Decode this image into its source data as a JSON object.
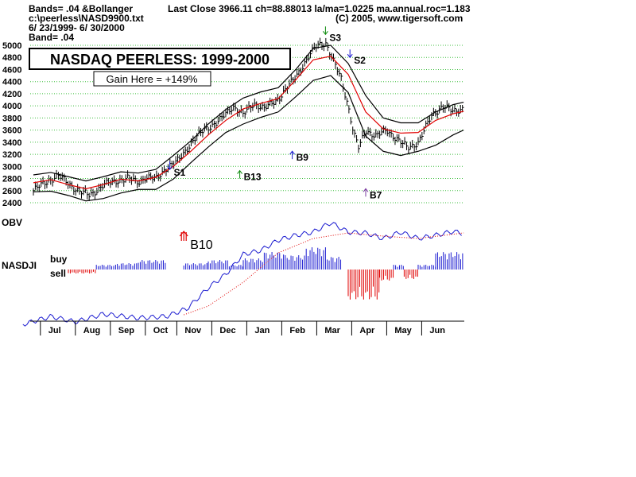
{
  "header": {
    "line1": "Bands= .04  &Bollanger",
    "line2": "c:\\peerless\\NASD9900.txt",
    "line3": " 6/ 23/1999- 6/ 30/2000",
    "line4": "Band= .04",
    "stats": "Last Close 3966.11 ch=88.88013  la/ma=1.0225 ma.annual.roc=1.183",
    "copyright": "(C) 2005, www.tigersoft.com"
  },
  "title_box": "NASDAQ PEERLESS: 1999-2000",
  "gain_box": "Gain Here = +149%",
  "labels": {
    "obv": "OBV",
    "nasdji": "NASDJI",
    "buy": "buy",
    "sell": "sell"
  },
  "colors": {
    "grid": "#3fbf3f",
    "price": "#000000",
    "upper_band": "#000000",
    "lower_band": "#000000",
    "ma": "#e00000",
    "obv": "#1a1ad0",
    "obv_ma": "#e00000",
    "buy_bars": "#1a1ad0",
    "sell_bars": "#e00000",
    "sig_blue": "#1a1ad0",
    "sig_green": "#0a8a0a",
    "sig_red": "#e00000",
    "sig_purple": "#7a3aa0"
  },
  "chart_data": {
    "type": "line",
    "title": "NASDAQ PEERLESS: 1999-2000",
    "ylim": [
      2400,
      5000
    ],
    "yticks": [
      2400,
      2600,
      2800,
      3000,
      3200,
      3400,
      3600,
      3800,
      4000,
      4200,
      4400,
      4600,
      4800,
      5000
    ],
    "months": [
      "Jul",
      "Aug",
      "Sep",
      "Oct",
      "Nov",
      "Dec",
      "Jan",
      "Feb",
      "Mar",
      "Apr",
      "May",
      "Jun"
    ],
    "x_range": [
      0,
      12.3
    ],
    "series": [
      {
        "name": "Close",
        "x": [
          0,
          0.3,
          0.7,
          1.0,
          1.3,
          1.6,
          2.0,
          2.4,
          2.7,
          3.0,
          3.2,
          3.5,
          3.8,
          4.1,
          4.5,
          4.9,
          5.3,
          5.7,
          6.0,
          6.3,
          6.6,
          7.0,
          7.4,
          7.8,
          8.1,
          8.35,
          8.6,
          8.8,
          9.0,
          9.15,
          9.3,
          9.5,
          9.8,
          10.1,
          10.4,
          10.7,
          11.0,
          11.4,
          11.7,
          12.0,
          12.3
        ],
        "y": [
          2600,
          2720,
          2850,
          2720,
          2590,
          2520,
          2690,
          2770,
          2800,
          2740,
          2820,
          2790,
          2980,
          3070,
          3380,
          3620,
          3740,
          4000,
          3850,
          4050,
          3950,
          4120,
          4400,
          4750,
          5000,
          5050,
          4700,
          4450,
          4000,
          3560,
          3300,
          3600,
          3500,
          3600,
          3450,
          3300,
          3400,
          3850,
          4000,
          3900,
          3970
        ]
      },
      {
        "name": "Upper band",
        "x": [
          0,
          0.5,
          1.0,
          1.5,
          2.0,
          2.5,
          3.0,
          3.5,
          4.0,
          4.5,
          5.0,
          5.5,
          6.0,
          6.5,
          7.0,
          7.5,
          8.0,
          8.5,
          9.0,
          9.5,
          10.0,
          10.5,
          11.0,
          11.5,
          12.0,
          12.3
        ],
        "y": [
          2860,
          2900,
          2830,
          2760,
          2830,
          2910,
          2890,
          2950,
          3180,
          3420,
          3700,
          3940,
          4130,
          4230,
          4300,
          4600,
          4950,
          5000,
          4700,
          4170,
          3800,
          3720,
          3720,
          3900,
          4020,
          4060
        ]
      },
      {
        "name": "MA",
        "x": [
          0,
          0.5,
          1.0,
          1.5,
          2.0,
          2.5,
          3.0,
          3.5,
          4.0,
          4.5,
          5.0,
          5.5,
          6.0,
          6.5,
          7.0,
          7.5,
          8.0,
          8.5,
          9.0,
          9.5,
          10.0,
          10.5,
          11.0,
          11.5,
          12.0,
          12.3
        ],
        "y": [
          2730,
          2780,
          2700,
          2630,
          2700,
          2790,
          2760,
          2820,
          3000,
          3250,
          3520,
          3760,
          3950,
          4040,
          4120,
          4430,
          4760,
          4820,
          4520,
          3900,
          3620,
          3550,
          3560,
          3760,
          3870,
          3910
        ]
      },
      {
        "name": "Lower band",
        "x": [
          0,
          0.5,
          1.0,
          1.5,
          2.0,
          2.5,
          3.0,
          3.5,
          4.0,
          4.5,
          5.0,
          5.5,
          6.0,
          6.5,
          7.0,
          7.5,
          8.0,
          8.5,
          9.0,
          9.5,
          10.0,
          10.5,
          11.0,
          11.5,
          12.0,
          12.3
        ],
        "y": [
          2580,
          2590,
          2520,
          2430,
          2470,
          2560,
          2620,
          2620,
          2790,
          3060,
          3320,
          3560,
          3700,
          3810,
          3900,
          4150,
          4420,
          4500,
          4220,
          3500,
          3250,
          3180,
          3250,
          3350,
          3520,
          3600
        ]
      }
    ],
    "signals": [
      {
        "label": "S1",
        "dir": "down",
        "x": 3.9,
        "y": 2950,
        "color": "blue"
      },
      {
        "label": "B13",
        "dir": "up",
        "x": 5.9,
        "y": 2800,
        "color": "green"
      },
      {
        "label": "B9",
        "dir": "up",
        "x": 7.4,
        "y": 3120,
        "color": "blue"
      },
      {
        "label": "S3",
        "dir": "down",
        "x": 8.35,
        "y": 5180,
        "color": "green"
      },
      {
        "label": "S2",
        "dir": "down",
        "x": 9.05,
        "y": 4800,
        "color": "blue"
      },
      {
        "label": "B7",
        "dir": "up",
        "x": 9.5,
        "y": 2500,
        "color": "purple"
      }
    ],
    "obv_signal": {
      "label": "B10",
      "x": 4.3,
      "color": "red"
    }
  }
}
